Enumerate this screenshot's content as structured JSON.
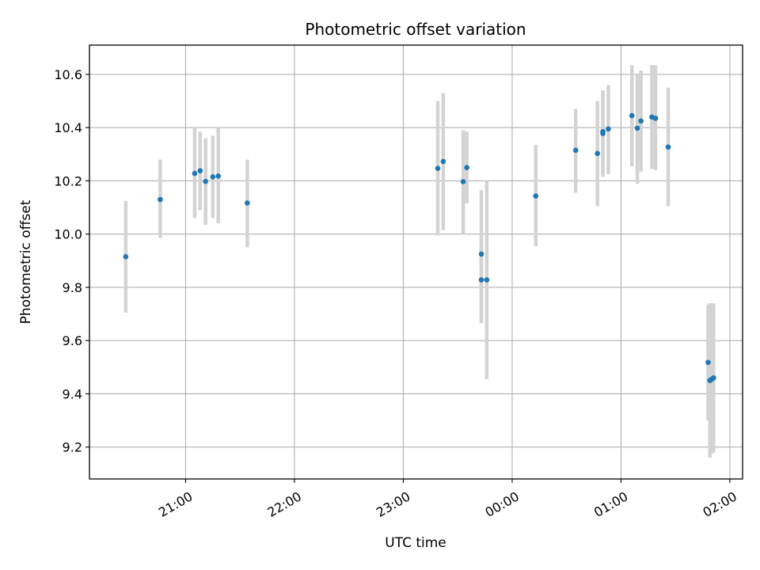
{
  "chart_data": {
    "type": "scatter",
    "title": "Photometric offset variation",
    "xlabel": "UTC time",
    "ylabel": "Photometric offset",
    "grid": true,
    "x_axis": {
      "kind": "time",
      "range": [
        "20:07",
        "02:07"
      ],
      "ticks": [
        {
          "t": "21:00",
          "label": "21:00"
        },
        {
          "t": "22:00",
          "label": "22:00"
        },
        {
          "t": "23:00",
          "label": "23:00"
        },
        {
          "t": "00:00",
          "label": "00:00"
        },
        {
          "t": "01:00",
          "label": "01:00"
        },
        {
          "t": "02:00",
          "label": "02:00"
        }
      ]
    },
    "y_axis": {
      "ylim": [
        9.08,
        10.71
      ],
      "ticks": [
        9.2,
        9.4,
        9.6,
        9.8,
        10.0,
        10.2,
        10.4,
        10.6
      ],
      "tick_labels": [
        "9.2",
        "9.4",
        "9.6",
        "9.8",
        "10.0",
        "10.2",
        "10.4",
        "10.6"
      ]
    },
    "colors": {
      "point": "#1f77b4",
      "errorbar": "#d3d3d3",
      "grid": "#b0b0b0"
    },
    "points": [
      {
        "t": "20:27",
        "y": 9.915,
        "err_low": 9.705,
        "err_high": 10.125
      },
      {
        "t": "20:46",
        "y": 10.13,
        "err_low": 9.985,
        "err_high": 10.28
      },
      {
        "t": "21:05",
        "y": 10.228,
        "err_low": 10.06,
        "err_high": 10.4
      },
      {
        "t": "21:08",
        "y": 10.238,
        "err_low": 10.09,
        "err_high": 10.385
      },
      {
        "t": "21:11",
        "y": 10.198,
        "err_low": 10.035,
        "err_high": 10.36
      },
      {
        "t": "21:15",
        "y": 10.215,
        "err_low": 10.06,
        "err_high": 10.37
      },
      {
        "t": "21:18",
        "y": 10.218,
        "err_low": 10.04,
        "err_high": 10.4
      },
      {
        "t": "21:34",
        "y": 10.117,
        "err_low": 9.95,
        "err_high": 10.28
      },
      {
        "t": "23:19",
        "y": 10.247,
        "err_low": 9.995,
        "err_high": 10.5
      },
      {
        "t": "23:22",
        "y": 10.273,
        "err_low": 10.015,
        "err_high": 10.53
      },
      {
        "t": "23:33",
        "y": 10.197,
        "err_low": 10.0,
        "err_high": 10.39
      },
      {
        "t": "23:35",
        "y": 10.25,
        "err_low": 10.115,
        "err_high": 10.385
      },
      {
        "t": "23:43",
        "y": 9.925,
        "err_low": 9.665,
        "err_high": 10.165
      },
      {
        "t": "23:43",
        "y": 9.828,
        "err_low": 9.68,
        "err_high": 9.98
      },
      {
        "t": "23:46",
        "y": 9.828,
        "err_low": 9.455,
        "err_high": 10.2
      },
      {
        "t": "00:13",
        "y": 10.143,
        "err_low": 9.955,
        "err_high": 10.335
      },
      {
        "t": "00:35",
        "y": 10.315,
        "err_low": 10.155,
        "err_high": 10.47
      },
      {
        "t": "00:47",
        "y": 10.303,
        "err_low": 10.105,
        "err_high": 10.5
      },
      {
        "t": "00:50",
        "y": 10.385,
        "err_low": 10.215,
        "err_high": 10.54
      },
      {
        "t": "00:50",
        "y": 10.378,
        "err_low": 10.23,
        "err_high": 10.53
      },
      {
        "t": "00:53",
        "y": 10.395,
        "err_low": 10.225,
        "err_high": 10.56
      },
      {
        "t": "01:06",
        "y": 10.445,
        "err_low": 10.255,
        "err_high": 10.635
      },
      {
        "t": "01:09",
        "y": 10.398,
        "err_low": 10.19,
        "err_high": 10.6
      },
      {
        "t": "01:11",
        "y": 10.425,
        "err_low": 10.235,
        "err_high": 10.615
      },
      {
        "t": "01:17",
        "y": 10.44,
        "err_low": 10.245,
        "err_high": 10.635
      },
      {
        "t": "01:19",
        "y": 10.435,
        "err_low": 10.24,
        "err_high": 10.635
      },
      {
        "t": "01:26",
        "y": 10.327,
        "err_low": 10.105,
        "err_high": 10.55
      },
      {
        "t": "01:48",
        "y": 9.518,
        "err_low": 9.3,
        "err_high": 9.735
      },
      {
        "t": "01:49",
        "y": 9.45,
        "err_low": 9.16,
        "err_high": 9.74
      },
      {
        "t": "01:50",
        "y": 9.455,
        "err_low": 9.175,
        "err_high": 9.74
      },
      {
        "t": "01:51",
        "y": 9.46,
        "err_low": 9.18,
        "err_high": 9.74
      }
    ]
  }
}
